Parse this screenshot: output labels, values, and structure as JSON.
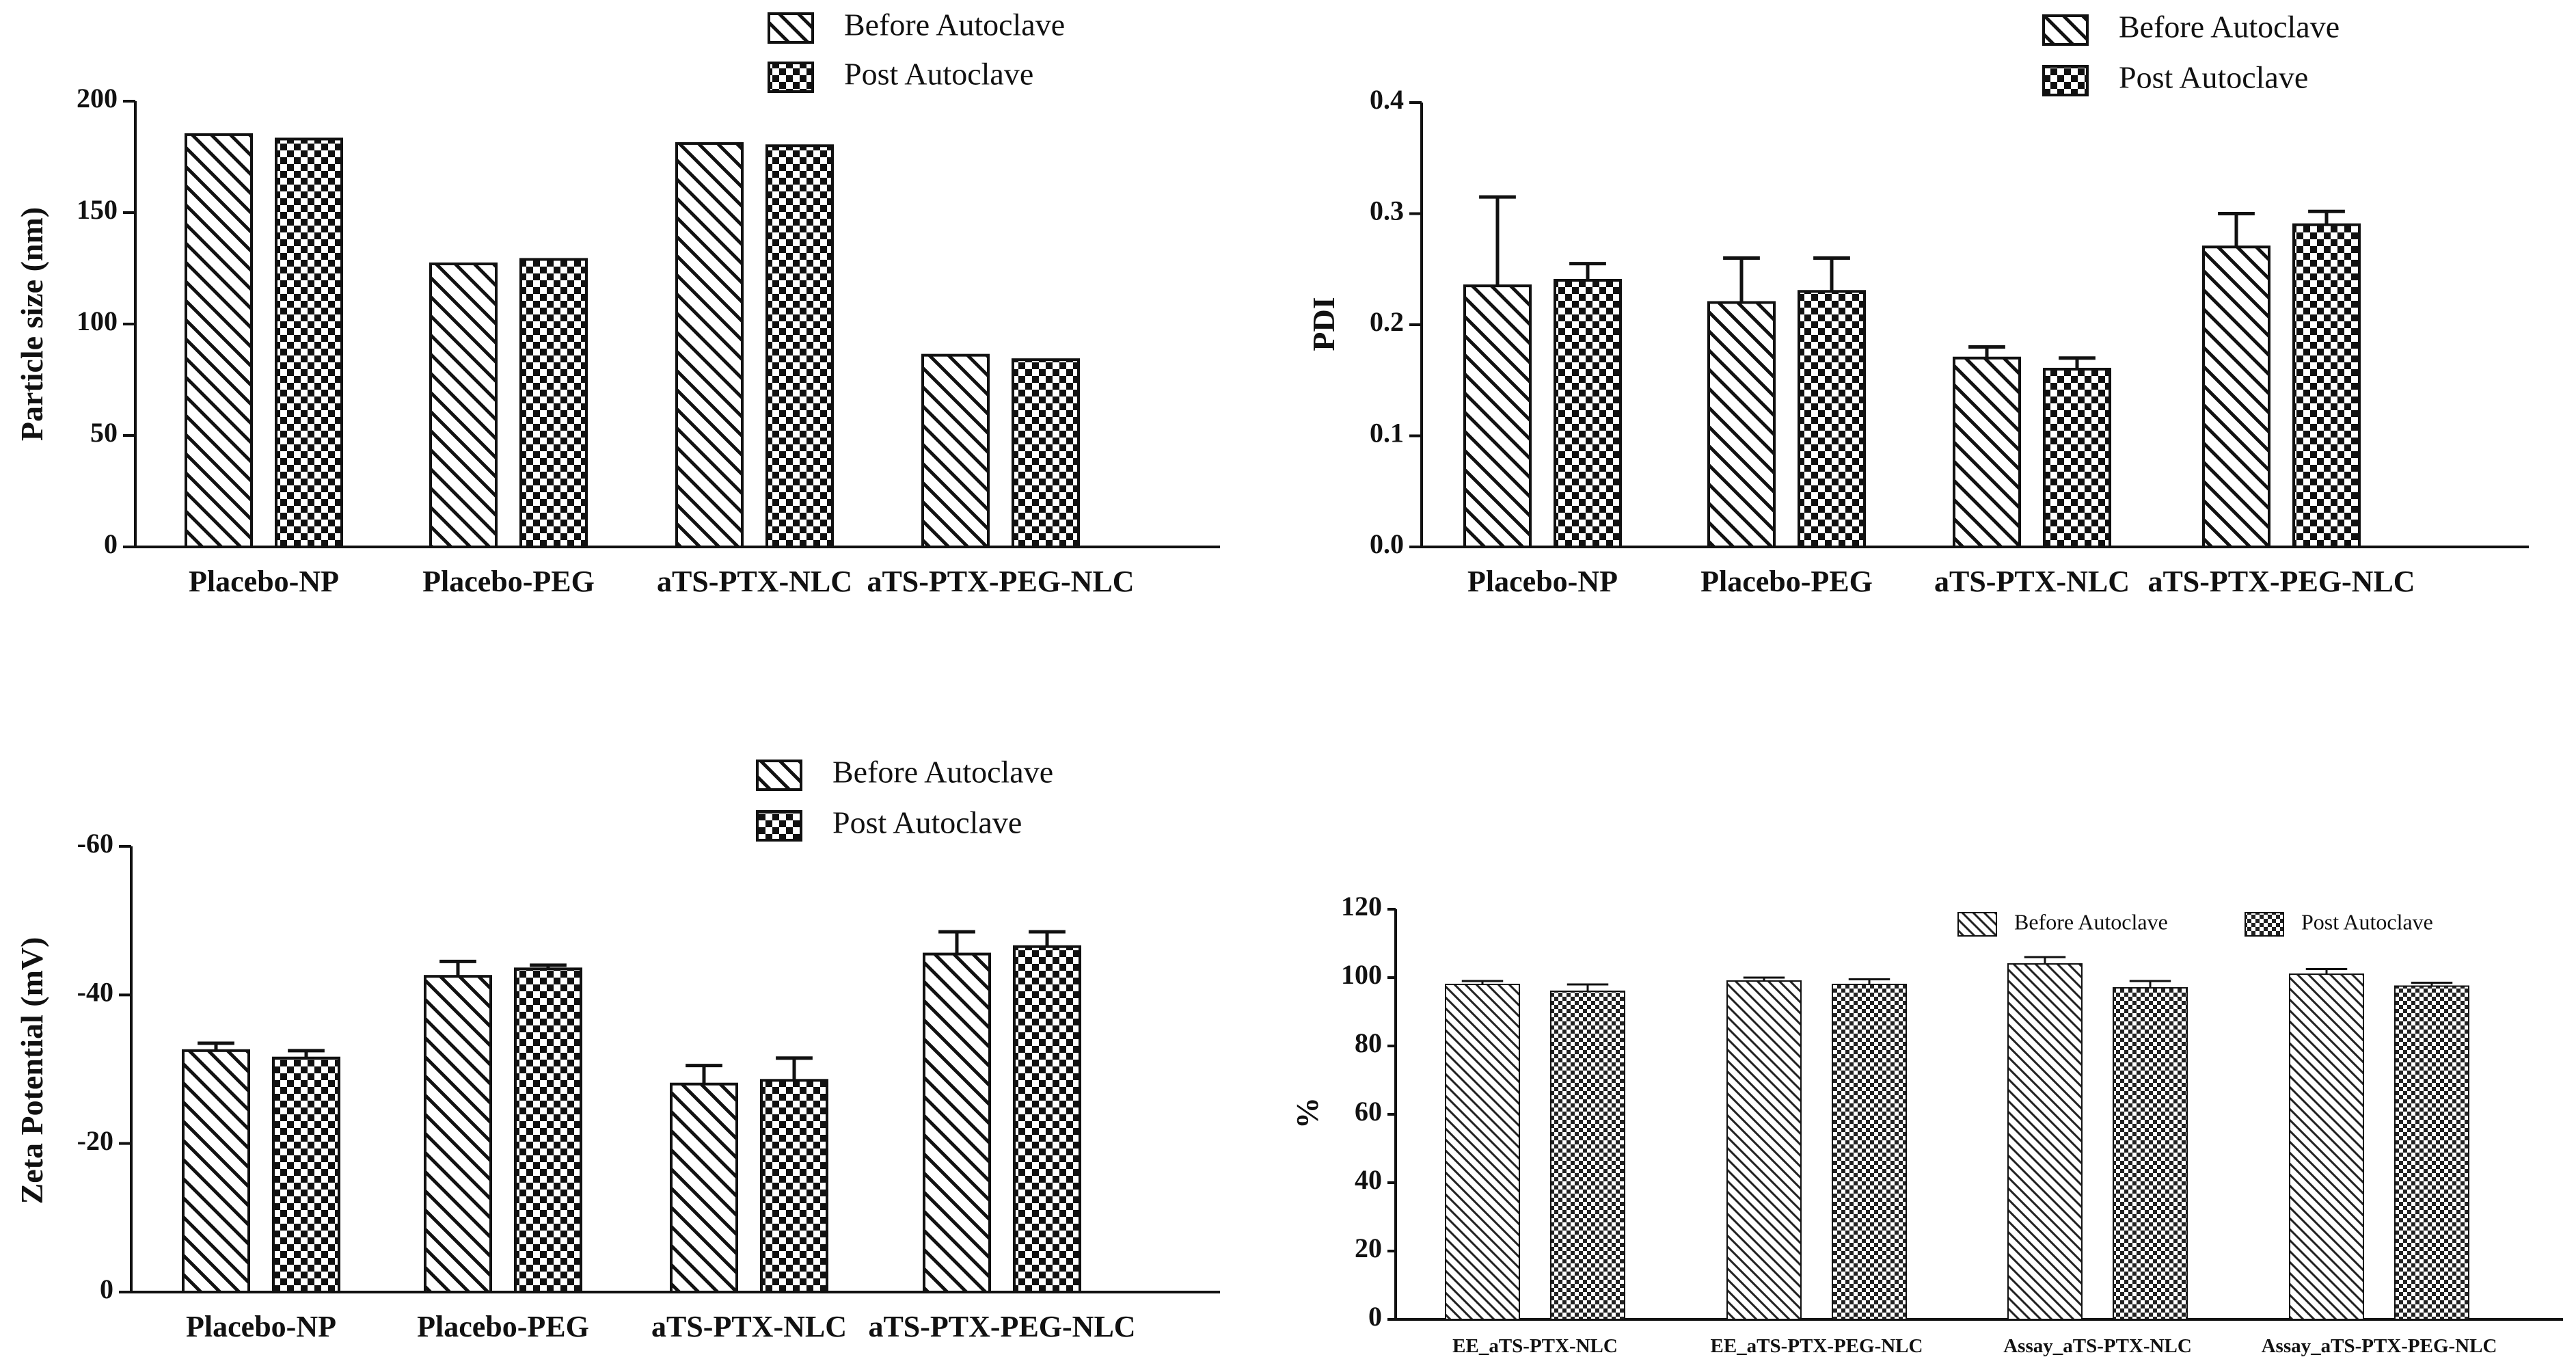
{
  "chart_data": [
    {
      "id": "particle-size",
      "type": "bar",
      "title": "",
      "xlabel": "",
      "ylabel": "Particle size (nm)",
      "ylim": [
        0,
        200
      ],
      "yticks": [
        0,
        50,
        100,
        150,
        200
      ],
      "reversed_y": false,
      "categories": [
        "Placebo-NP",
        "Placebo-PEG",
        "aTS-PTX-NLC",
        "aTS-PTX-PEG-NLC"
      ],
      "series": [
        {
          "name": "Before Autoclave",
          "pattern": "diagonal-hatch",
          "values": [
            185,
            127,
            181,
            86
          ],
          "errors": [
            0,
            0,
            0,
            0
          ]
        },
        {
          "name": "Post Autoclave",
          "pattern": "checkerboard",
          "values": [
            183,
            129,
            180,
            84
          ],
          "errors": [
            0,
            0,
            0,
            0
          ]
        }
      ],
      "legend": "top"
    },
    {
      "id": "pdi",
      "type": "bar",
      "title": "",
      "xlabel": "",
      "ylabel": "PDI",
      "ylim": [
        0,
        0.4
      ],
      "yticks": [
        "0.0",
        "0.1",
        "0.2",
        "0.3",
        "0.4"
      ],
      "reversed_y": false,
      "categories": [
        "Placebo-NP",
        "Placebo-PEG",
        "aTS-PTX-NLC",
        "aTS-PTX-PEG-NLC"
      ],
      "series": [
        {
          "name": "Before Autoclave",
          "pattern": "diagonal-hatch",
          "values": [
            0.235,
            0.22,
            0.17,
            0.27
          ],
          "errors": [
            0.08,
            0.04,
            0.01,
            0.03
          ]
        },
        {
          "name": "Post Autoclave",
          "pattern": "checkerboard",
          "values": [
            0.24,
            0.23,
            0.16,
            0.29
          ],
          "errors": [
            0.015,
            0.03,
            0.01,
            0.012
          ]
        }
      ],
      "legend": "top"
    },
    {
      "id": "zeta-potential",
      "type": "bar",
      "title": "",
      "xlabel": "",
      "ylabel": "Zeta Potential (mV)",
      "ylim": [
        0,
        -60
      ],
      "yticks": [
        "0",
        "-20",
        "-40",
        "-60"
      ],
      "reversed_y": true,
      "categories": [
        "Placebo-NP",
        "Placebo-PEG",
        "aTS-PTX-NLC",
        "aTS-PTX-PEG-NLC"
      ],
      "series": [
        {
          "name": "Before Autoclave",
          "pattern": "diagonal-hatch",
          "values": [
            -32.5,
            -42.5,
            -28,
            -45.5
          ],
          "errors": [
            1,
            2,
            2.5,
            3
          ]
        },
        {
          "name": "Post Autoclave",
          "pattern": "checkerboard",
          "values": [
            -31.5,
            -43.5,
            -28.5,
            -46.5
          ],
          "errors": [
            1,
            0.5,
            3,
            2
          ]
        }
      ],
      "legend": "top"
    },
    {
      "id": "percent",
      "type": "bar",
      "title": "",
      "xlabel": "",
      "ylabel": "%",
      "ylim": [
        0,
        120
      ],
      "yticks": [
        0,
        20,
        40,
        60,
        80,
        100,
        120
      ],
      "reversed_y": false,
      "categories": [
        "EE_aTS-PTX-NLC",
        "EE_aTS-PTX-PEG-NLC",
        "Assay_aTS-PTX-NLC",
        "Assay_aTS-PTX-PEG-NLC"
      ],
      "series": [
        {
          "name": "Before Autoclave",
          "pattern": "diagonal-hatch",
          "values": [
            98,
            99,
            104,
            101
          ],
          "errors": [
            1,
            1,
            2,
            1.5
          ]
        },
        {
          "name": "Post Autoclave",
          "pattern": "checkerboard",
          "values": [
            96,
            98,
            97,
            97.5
          ],
          "errors": [
            2,
            1.5,
            2,
            1
          ]
        }
      ],
      "legend": "top-right"
    }
  ]
}
